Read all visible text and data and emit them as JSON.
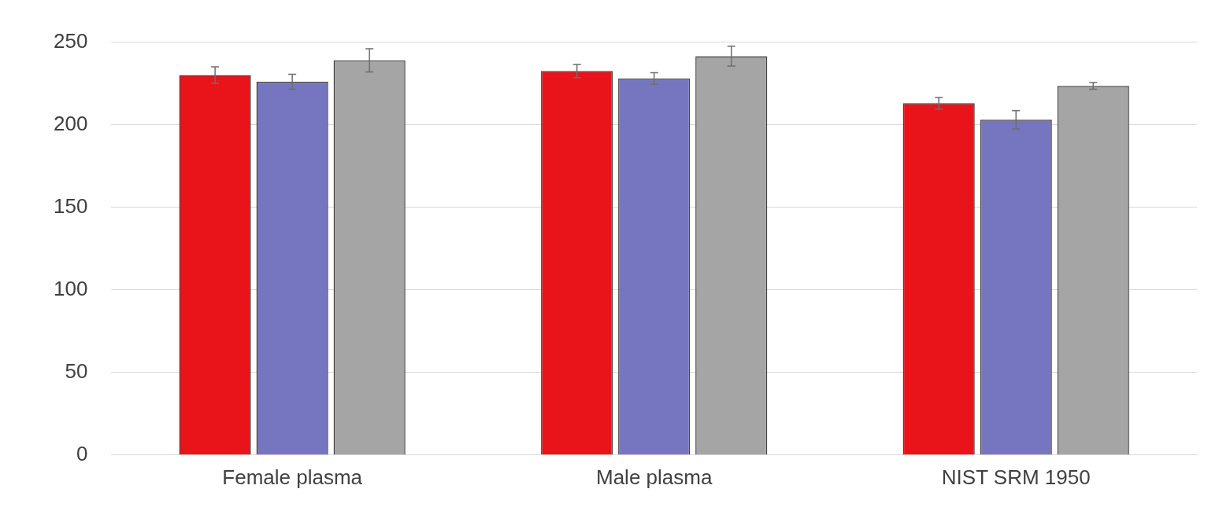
{
  "chart_data": {
    "type": "bar",
    "categories": [
      "Female plasma",
      "Male plasma",
      "NIST SRM 1950"
    ],
    "series": [
      {
        "color": "#e8141a",
        "values": [
          230,
          232.5,
          213
        ],
        "errors": [
          5,
          4,
          3.5
        ]
      },
      {
        "color": "#7676c0",
        "values": [
          226,
          228,
          203
        ],
        "errors": [
          4.5,
          3.5,
          5.5
        ]
      },
      {
        "color": "#a5a5a5",
        "values": [
          239,
          241.5,
          223.5
        ],
        "errors": [
          7,
          6,
          2
        ]
      }
    ],
    "ylim": [
      0,
      250
    ],
    "yticks": [
      0,
      50,
      100,
      150,
      200,
      250
    ],
    "grid": "y",
    "legend": false
  }
}
